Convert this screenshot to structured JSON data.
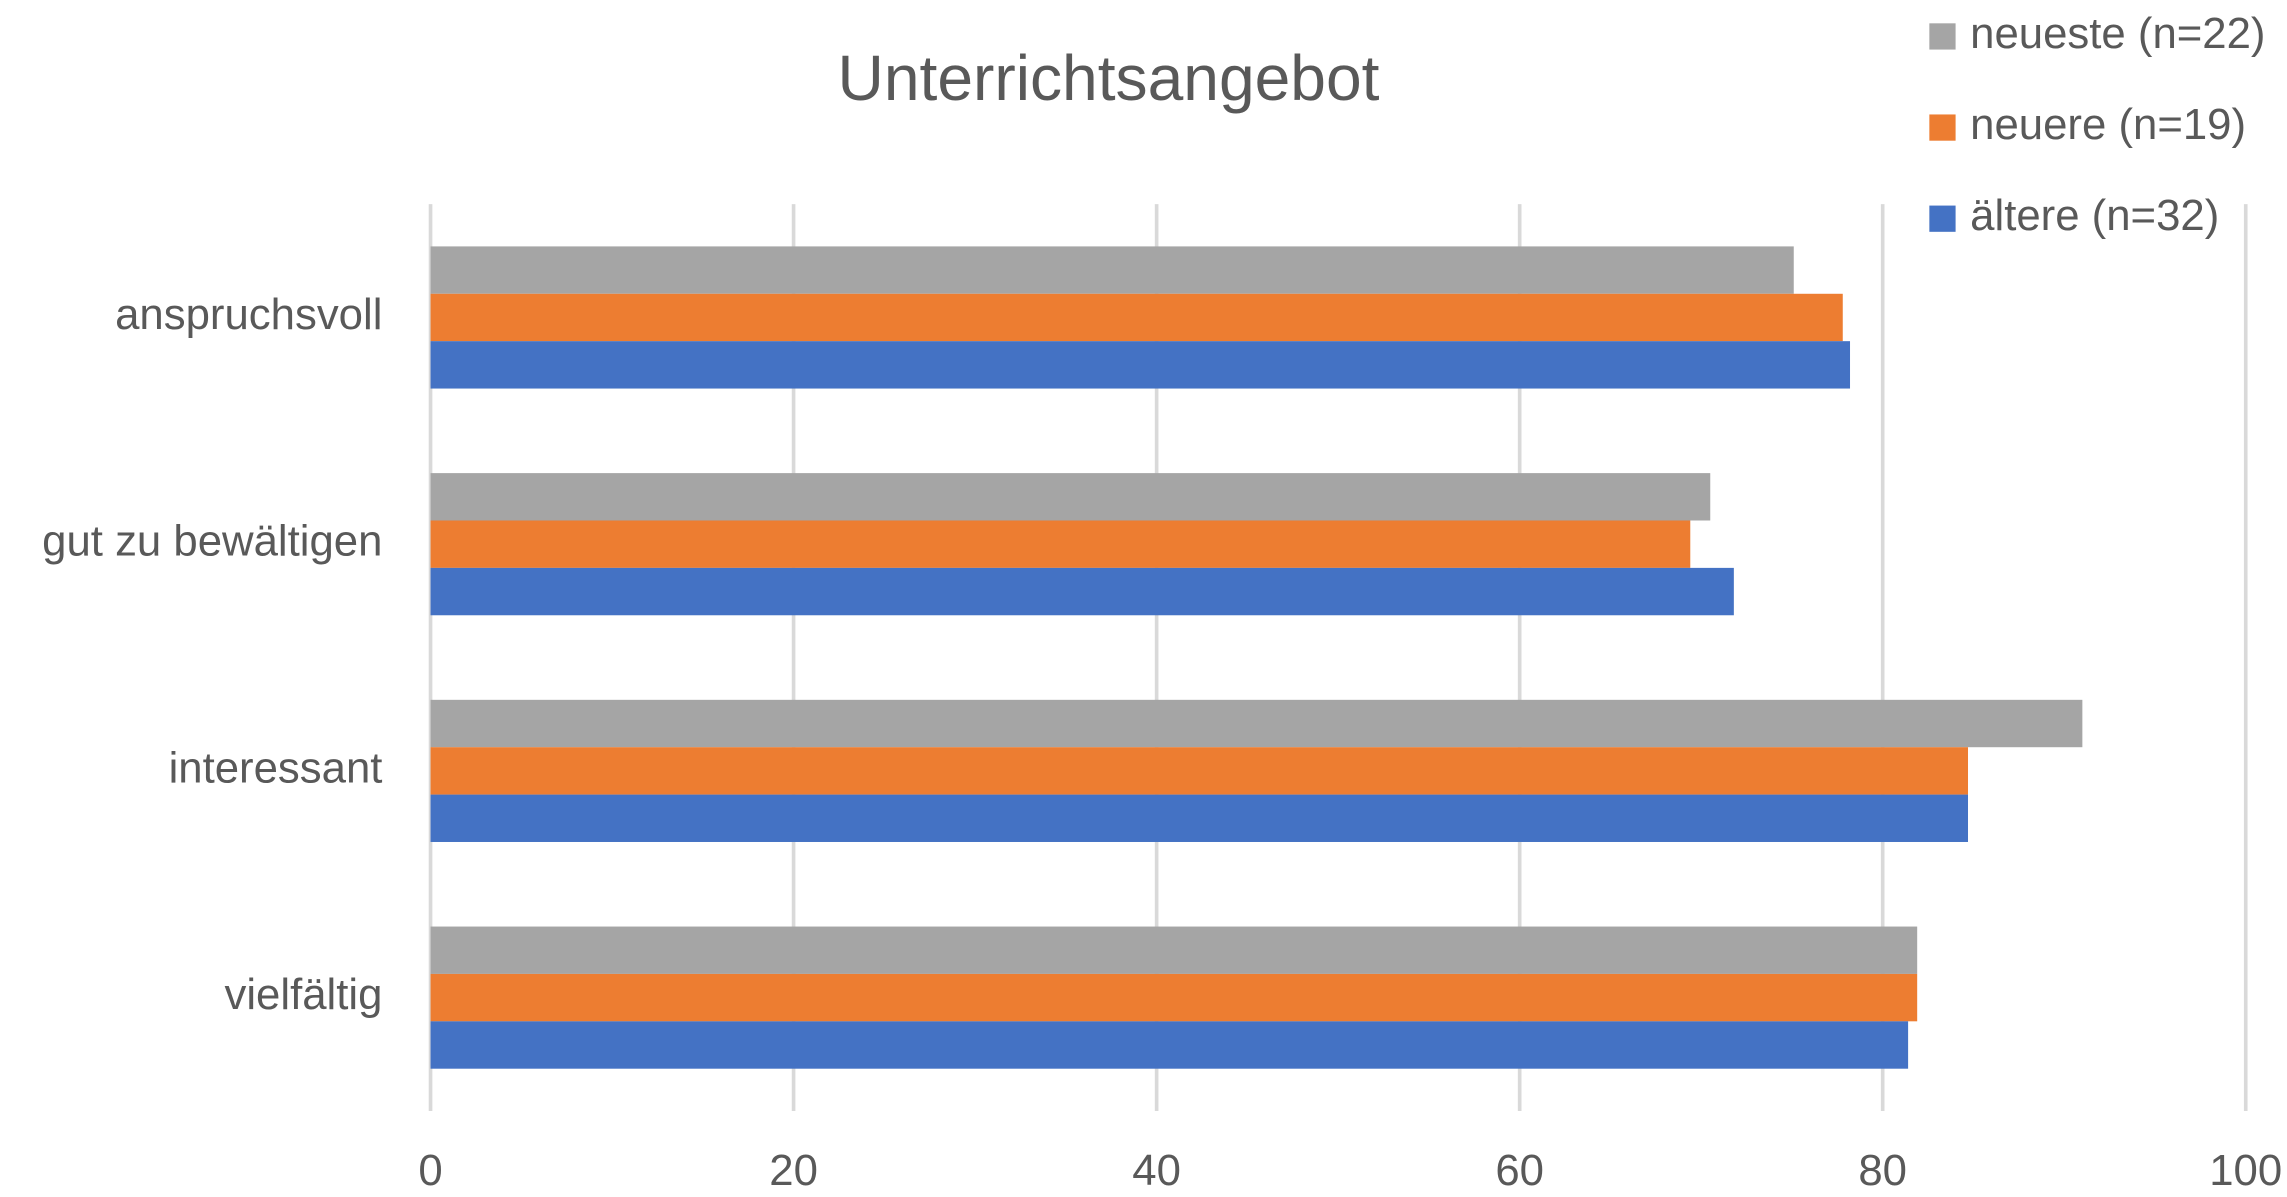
{
  "chart_data": {
    "type": "hbar",
    "title": "Unterrichtsangebot",
    "categories": [
      "anspruchsvoll",
      "gut zu bewältigen",
      "interessant",
      "vielfältig"
    ],
    "series": [
      {
        "name": "neueste (n=22)",
        "color": "#a5a5a5",
        "values": [
          75.1,
          70.5,
          91.0,
          81.9
        ]
      },
      {
        "name": "neuere (n=19)",
        "color": "#ed7d31",
        "values": [
          77.8,
          69.4,
          84.7,
          81.9
        ]
      },
      {
        "name": "ältere (n=32)",
        "color": "#4472c4",
        "values": [
          78.2,
          71.8,
          84.7,
          81.4
        ]
      }
    ],
    "xlim": [
      0,
      100
    ],
    "xticks": [
      0,
      20,
      40,
      60,
      80,
      100
    ],
    "grid": true,
    "legend": "top-right"
  }
}
